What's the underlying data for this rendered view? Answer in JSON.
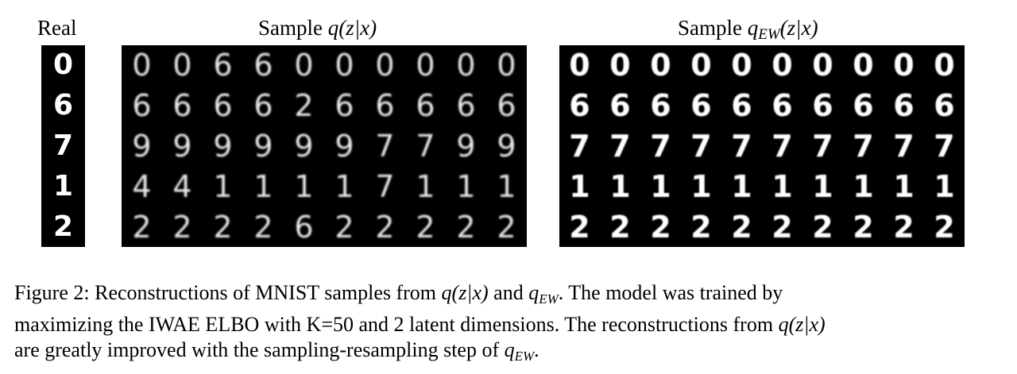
{
  "labels": {
    "real": "Real",
    "q_prefix": "Sample ",
    "q_math": "q(z|x)",
    "qew_prefix": "Sample ",
    "qew_q": "q",
    "qew_sub": "EW",
    "qew_rest": "(z|x)"
  },
  "real_digits": [
    "0",
    "6",
    "7",
    "1",
    "2"
  ],
  "samples_q": [
    [
      "0",
      "0",
      "6",
      "6",
      "0",
      "0",
      "0",
      "0",
      "0",
      "0"
    ],
    [
      "6",
      "6",
      "6",
      "6",
      "2",
      "6",
      "6",
      "6",
      "6",
      "6"
    ],
    [
      "9",
      "9",
      "9",
      "9",
      "9",
      "9",
      "7",
      "7",
      "9",
      "9"
    ],
    [
      "4",
      "4",
      "1",
      "1",
      "1",
      "1",
      "7",
      "1",
      "1",
      "1"
    ],
    [
      "2",
      "2",
      "2",
      "2",
      "6",
      "2",
      "2",
      "2",
      "2",
      "2"
    ]
  ],
  "samples_qew": [
    [
      "0",
      "0",
      "0",
      "0",
      "0",
      "0",
      "0",
      "0",
      "0",
      "0"
    ],
    [
      "6",
      "6",
      "6",
      "6",
      "6",
      "6",
      "6",
      "6",
      "6",
      "6"
    ],
    [
      "7",
      "7",
      "7",
      "7",
      "7",
      "7",
      "7",
      "7",
      "7",
      "7"
    ],
    [
      "1",
      "1",
      "1",
      "1",
      "1",
      "1",
      "1",
      "1",
      "1",
      "1"
    ],
    [
      "2",
      "2",
      "2",
      "2",
      "2",
      "2",
      "2",
      "2",
      "2",
      "2"
    ]
  ],
  "caption": {
    "line1_a": "Figure 2: Reconstructions of MNIST samples from ",
    "line1_m1": "q(z|x)",
    "line1_b": " and ",
    "line1_q": "q",
    "line1_sub": "EW",
    "line1_c": ". The model was trained by",
    "line2_a": "maximizing the IWAE ELBO with K=50 and 2 latent dimensions. The reconstructions from ",
    "line2_m": "q(z|x)",
    "line3_a": "are greatly improved with the sampling-resampling step of ",
    "line3_q": "q",
    "line3_sub": "EW",
    "line3_b": "."
  }
}
